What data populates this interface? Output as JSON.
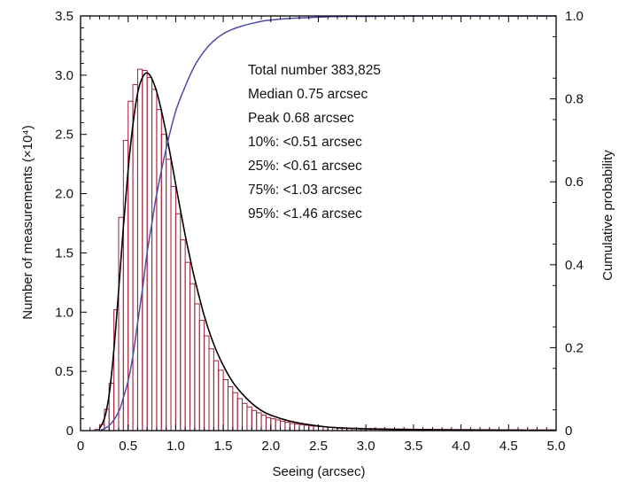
{
  "chart_data": {
    "type": "bar",
    "xlabel": "Seeing (arcsec)",
    "ylabel": "Number of measurements (×10⁴)",
    "y2label": "Cumulative probability",
    "xlim": [
      0,
      5.0
    ],
    "ylim": [
      0,
      3.5
    ],
    "y2lim": [
      0,
      1.0
    ],
    "x_ticks": [
      "0",
      "0.5",
      "1.0",
      "1.5",
      "2.0",
      "2.5",
      "3.0",
      "3.5",
      "4.0",
      "4.5",
      "5.0"
    ],
    "y_ticks": [
      "0",
      "0.5",
      "1.0",
      "1.5",
      "2.0",
      "2.5",
      "3.0",
      "3.5"
    ],
    "y2_ticks": [
      "0",
      "0.2",
      "0.4",
      "0.6",
      "0.8",
      "1.0"
    ],
    "bin_width": 0.05,
    "grid": false,
    "colors": {
      "histogram": "#a0203c",
      "fit": "#000000",
      "cumulative": "#4c4ca6"
    },
    "series": [
      {
        "kind": "histogram",
        "x": [
          0.125,
          0.175,
          0.225,
          0.275,
          0.325,
          0.375,
          0.425,
          0.475,
          0.525,
          0.575,
          0.625,
          0.675,
          0.725,
          0.775,
          0.825,
          0.875,
          0.925,
          0.975,
          1.025,
          1.075,
          1.125,
          1.175,
          1.225,
          1.275,
          1.325,
          1.375,
          1.425,
          1.475,
          1.525,
          1.575,
          1.625,
          1.675,
          1.725,
          1.775,
          1.825,
          1.875,
          1.925,
          1.975,
          2.025,
          2.075,
          2.125,
          2.175,
          2.225,
          2.275,
          2.325,
          2.375,
          2.425,
          2.475,
          2.525,
          2.575,
          2.625,
          2.675,
          2.725,
          2.775,
          2.825,
          2.875,
          2.925,
          2.975,
          3.025,
          3.075,
          3.125,
          3.175,
          3.225,
          3.275,
          3.325,
          3.375,
          3.425,
          3.475,
          3.525,
          3.575,
          3.625,
          3.675,
          3.725,
          3.775,
          3.825,
          3.875,
          3.925,
          3.975,
          4.025,
          4.075,
          4.125,
          4.175,
          4.225,
          4.275,
          4.325,
          4.375,
          4.425,
          4.475,
          4.525,
          4.575,
          4.625,
          4.675,
          4.725,
          4.775,
          4.825,
          4.875,
          4.925,
          4.975
        ],
        "values": [
          0.0,
          0.01,
          0.05,
          0.18,
          0.4,
          1.02,
          1.8,
          2.45,
          2.78,
          2.92,
          3.05,
          3.04,
          2.98,
          2.88,
          2.71,
          2.5,
          2.29,
          2.06,
          1.83,
          1.61,
          1.42,
          1.24,
          1.07,
          0.93,
          0.8,
          0.69,
          0.59,
          0.51,
          0.43,
          0.37,
          0.32,
          0.27,
          0.23,
          0.2,
          0.17,
          0.15,
          0.13,
          0.11,
          0.1,
          0.09,
          0.08,
          0.07,
          0.06,
          0.055,
          0.05,
          0.045,
          0.04,
          0.037,
          0.034,
          0.031,
          0.029,
          0.027,
          0.025,
          0.023,
          0.022,
          0.021,
          0.02,
          0.019,
          0.018,
          0.017,
          0.016,
          0.016,
          0.015,
          0.014,
          0.014,
          0.013,
          0.013,
          0.012,
          0.012,
          0.011,
          0.011,
          0.011,
          0.01,
          0.01,
          0.01,
          0.01,
          0.009,
          0.009,
          0.009,
          0.009,
          0.008,
          0.008,
          0.008,
          0.008,
          0.008,
          0.007,
          0.007,
          0.007,
          0.007,
          0.007,
          0.007,
          0.006,
          0.006,
          0.006,
          0.006,
          0.006,
          0.006,
          0.006
        ]
      },
      {
        "kind": "fit",
        "x": [
          0.2,
          0.25,
          0.3,
          0.35,
          0.4,
          0.45,
          0.5,
          0.55,
          0.6,
          0.65,
          0.7,
          0.75,
          0.8,
          0.85,
          0.9,
          0.95,
          1.0,
          1.05,
          1.1,
          1.15,
          1.2,
          1.3,
          1.4,
          1.5,
          1.6,
          1.7,
          1.8,
          1.9,
          2.0,
          2.2,
          2.4,
          2.6,
          2.8,
          3.0,
          3.5,
          4.0,
          4.5,
          5.0
        ],
        "values": [
          0.02,
          0.1,
          0.3,
          0.68,
          1.18,
          1.72,
          2.2,
          2.58,
          2.85,
          2.98,
          3.02,
          2.97,
          2.86,
          2.7,
          2.51,
          2.3,
          2.08,
          1.86,
          1.65,
          1.46,
          1.28,
          0.97,
          0.73,
          0.55,
          0.41,
          0.31,
          0.23,
          0.17,
          0.13,
          0.08,
          0.05,
          0.03,
          0.02,
          0.015,
          0.008,
          0.005,
          0.003,
          0.002
        ]
      },
      {
        "kind": "cumulative",
        "axis": "right",
        "x": [
          0.2,
          0.3,
          0.4,
          0.45,
          0.5,
          0.55,
          0.6,
          0.65,
          0.7,
          0.75,
          0.8,
          0.9,
          1.0,
          1.1,
          1.2,
          1.3,
          1.4,
          1.5,
          1.6,
          1.7,
          1.8,
          1.9,
          2.0,
          2.2,
          2.4,
          2.6,
          2.8,
          3.0,
          3.5,
          4.0,
          5.0
        ],
        "values": [
          0.0,
          0.012,
          0.045,
          0.08,
          0.12,
          0.18,
          0.26,
          0.34,
          0.43,
          0.5,
          0.57,
          0.68,
          0.77,
          0.83,
          0.88,
          0.915,
          0.94,
          0.957,
          0.968,
          0.976,
          0.982,
          0.987,
          0.99,
          0.994,
          0.996,
          0.998,
          0.999,
          0.999,
          1.0,
          1.0,
          1.0
        ]
      }
    ],
    "annotations": [
      "Total number 383,825",
      "Median 0.75 arcsec",
      "Peak 0.68 arcsec",
      "10%: <0.51 arcsec",
      "25%: <0.61 arcsec",
      "75%: <1.03 arcsec",
      "95%: <1.46 arcsec"
    ]
  }
}
